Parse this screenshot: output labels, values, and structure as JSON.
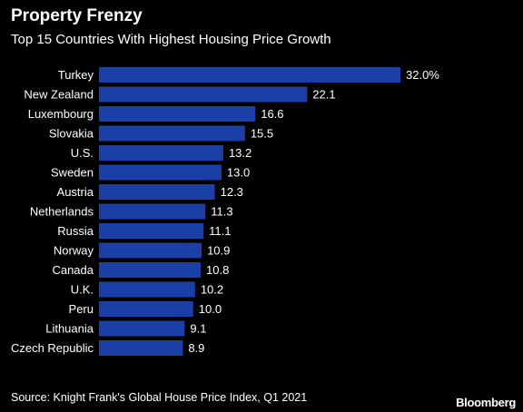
{
  "header": {
    "title": "Property Frenzy",
    "subtitle": "Top 15 Countries With Highest Housing Price Growth"
  },
  "footer": {
    "source": "Source: Knight Frank's Global House Price Index, Q1 2021",
    "brand": "Bloomberg"
  },
  "colors": {
    "background": "#000000",
    "bar": "#1a3fa6",
    "text": "#ffffff"
  },
  "chart_data": {
    "type": "bar",
    "orientation": "horizontal",
    "categories": [
      "Turkey",
      "New Zealand",
      "Luxembourg",
      "Slovakia",
      "U.S.",
      "Sweden",
      "Austria",
      "Netherlands",
      "Russia",
      "Norway",
      "Canada",
      "U.K.",
      "Peru",
      "Lithuania",
      "Czech Republic"
    ],
    "values": [
      32.0,
      22.1,
      16.6,
      15.5,
      13.2,
      13.0,
      12.3,
      11.3,
      11.1,
      10.9,
      10.8,
      10.2,
      10.0,
      9.1,
      8.9
    ],
    "value_labels": [
      "32.0%",
      "22.1",
      "16.6",
      "15.5",
      "13.2",
      "13.0",
      "12.3",
      "11.3",
      "11.1",
      "10.9",
      "10.8",
      "10.2",
      "10.0",
      "9.1",
      "8.9"
    ],
    "title": "Property Frenzy",
    "subtitle": "Top 15 Countries With Highest Housing Price Growth",
    "xlim": [
      0,
      32.0
    ],
    "grid": false,
    "legend": "none"
  }
}
